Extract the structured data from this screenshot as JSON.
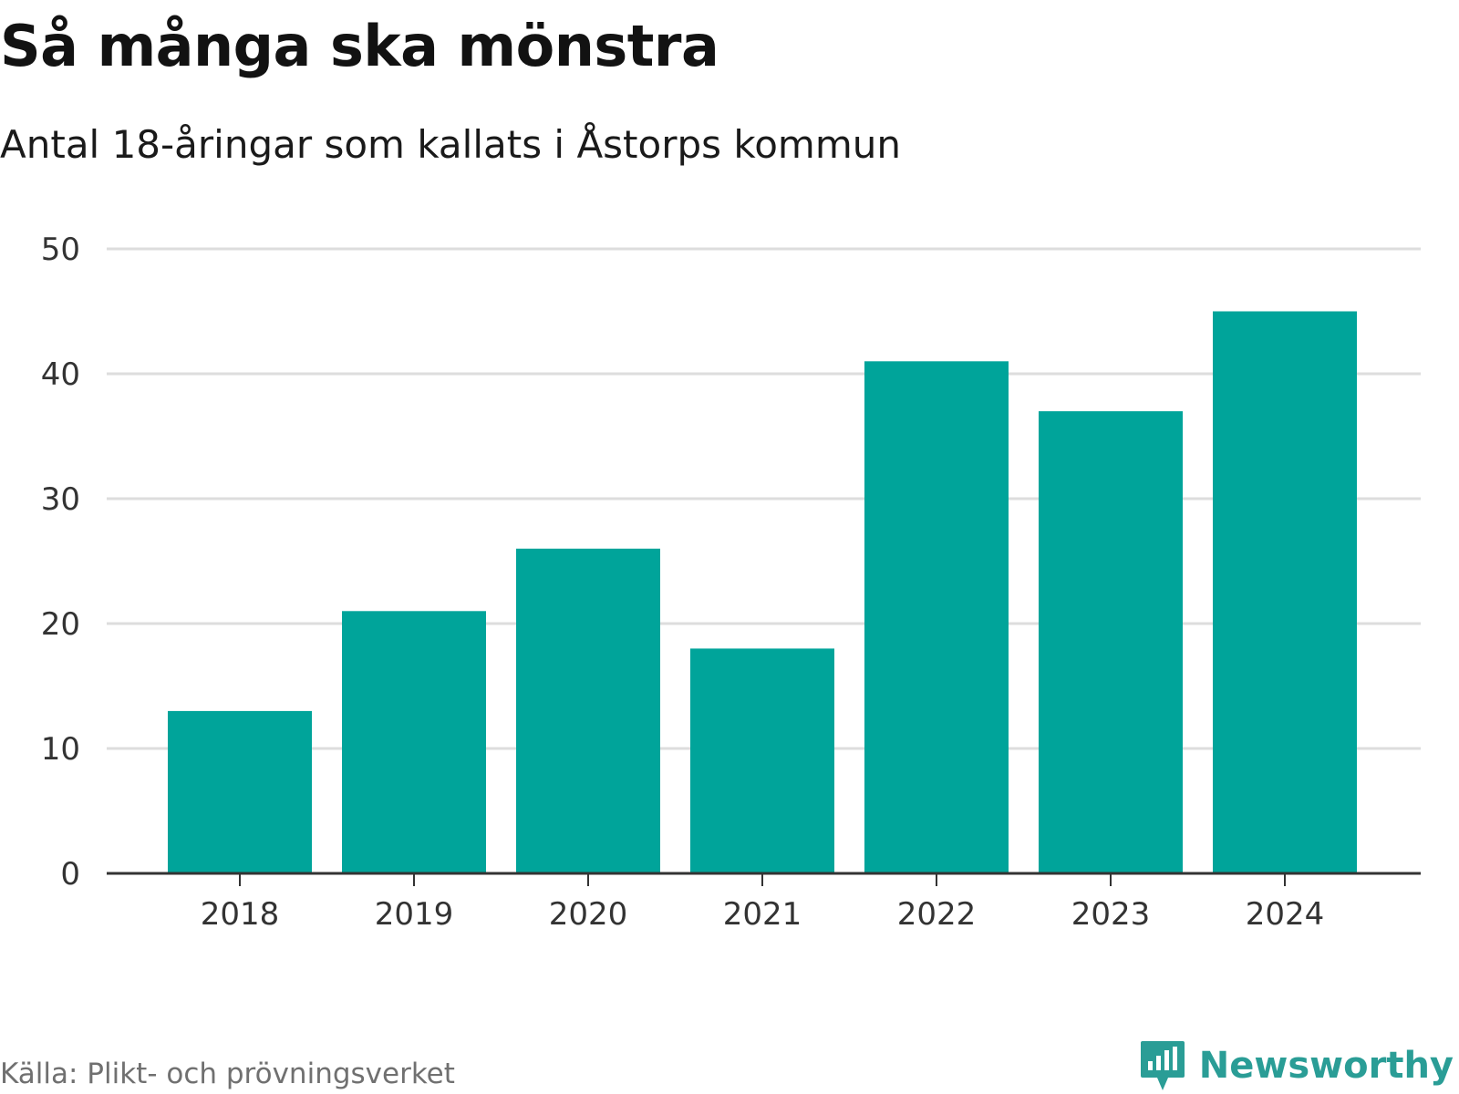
{
  "title": "Så många ska mönstra",
  "subtitle": "Antal 18-åringar som kallats i Åstorps kommun",
  "source": "Källa: Plikt- och prövningsverket",
  "brand": {
    "name": "Newsworthy",
    "icon": "newsworthy-logo-icon",
    "color": "#2a9d96"
  },
  "chart_data": {
    "type": "bar",
    "categories": [
      "2018",
      "2019",
      "2020",
      "2021",
      "2022",
      "2023",
      "2024"
    ],
    "values": [
      13,
      21,
      26,
      18,
      41,
      37,
      45
    ],
    "xlabel": "",
    "ylabel": "",
    "ylim": [
      0,
      50
    ],
    "yticks": [
      0,
      10,
      20,
      30,
      40,
      50
    ],
    "grid": true,
    "bar_color": "#00a49a",
    "grid_color": "#dddddd",
    "axis_color": "#333333"
  }
}
